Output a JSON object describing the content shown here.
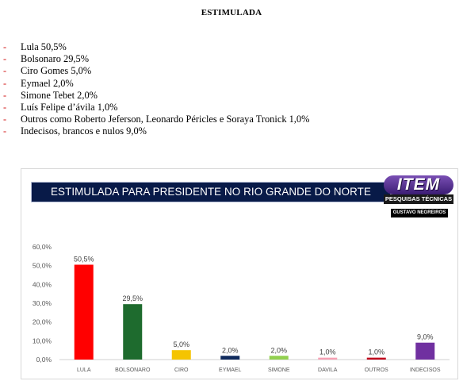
{
  "heading": "ESTIMULADA",
  "items": [
    {
      "bullet": "-",
      "text": "Lula 50,5%"
    },
    {
      "bullet": "-",
      "text": "Bolsonaro 29,5%"
    },
    {
      "bullet": "-",
      "text": "Ciro Gomes 5,0%"
    },
    {
      "bullet": "-",
      "text": "Eymael 2,0%"
    },
    {
      "bullet": "-",
      "text": "Simone Tebet 2,0%"
    },
    {
      "bullet": "-",
      "text": "Luís Felipe d’ávila 1,0%"
    },
    {
      "bullet": "-",
      "text": "Outros como Roberto Jeferson, Leonardo Péricles e Soraya Tronick 1,0%"
    },
    {
      "bullet": "-",
      "text": "Indecisos, brancos e nulos 9,0%"
    }
  ],
  "logo": {
    "word": "ITEM",
    "subtitle": "PESQUISAS TÉCNICAS",
    "name": "GUSTAVO NEGREIROS"
  },
  "chart_data": {
    "type": "bar",
    "title": "ESTIMULADA PARA PRESIDENTE NO RIO GRANDE DO NORTE",
    "categories": [
      "LULA",
      "BOLSONARO",
      "CIRO",
      "EYMAEL",
      "SIMONE",
      "DAVILA",
      "OUTROS",
      "INDECISOS"
    ],
    "values": [
      50.5,
      29.5,
      5.0,
      2.0,
      2.0,
      1.0,
      1.0,
      9.0
    ],
    "value_labels": [
      "50,5%",
      "29,5%",
      "5,0%",
      "2,0%",
      "2,0%",
      "1,0%",
      "1,0%",
      "9,0%"
    ],
    "colors": [
      "#ff0000",
      "#1e6b2e",
      "#f5c400",
      "#0f2a5c",
      "#92d050",
      "#f7a0b4",
      "#c0001a",
      "#7030a0"
    ],
    "ylim": [
      0,
      60
    ],
    "yticks": [
      0,
      10,
      20,
      30,
      40,
      50,
      60
    ],
    "ytick_labels": [
      "0,0%",
      "10,0%",
      "20,0%",
      "30,0%",
      "40,0%",
      "50,0%",
      "60,0%"
    ],
    "xlabel": "",
    "ylabel": "",
    "grid": false,
    "legend": "none"
  }
}
